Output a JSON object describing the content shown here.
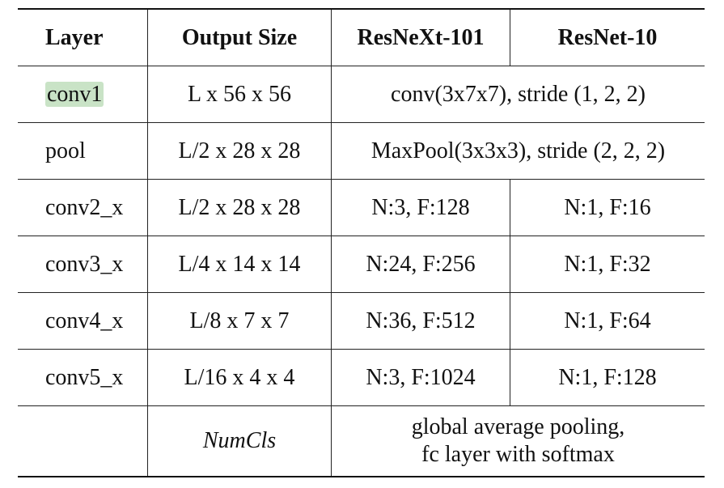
{
  "table": {
    "headers": [
      "Layer",
      "Output Size",
      "ResNeXt-101",
      "ResNet-10"
    ],
    "rows": [
      {
        "layer": "conv1",
        "output": "L x 56 x 56",
        "merged": "conv(3x7x7), stride (1, 2, 2)"
      },
      {
        "layer": "pool",
        "output": "L/2 x 28 x 28",
        "merged": "MaxPool(3x3x3), stride (2, 2, 2)"
      },
      {
        "layer": "conv2_x",
        "output": "L/2 x 28 x 28",
        "resnext": "N:3, F:128",
        "resnet": "N:1, F:16"
      },
      {
        "layer": "conv3_x",
        "output": "L/4 x 14 x 14",
        "resnext": "N:24, F:256",
        "resnet": "N:1, F:32"
      },
      {
        "layer": "conv4_x",
        "output": "L/8 x 7 x 7",
        "resnext": "N:36, F:512",
        "resnet": "N:1, F:64"
      },
      {
        "layer": "conv5_x",
        "output": "L/16 x 4 x 4",
        "resnext": "N:3, F:1024",
        "resnet": "N:1, F:128"
      },
      {
        "layer": "",
        "output": "NumCls",
        "merged_line1": "global average pooling,",
        "merged_line2": "fc layer with softmax"
      }
    ],
    "highlight_color": "#c9e3c6"
  }
}
